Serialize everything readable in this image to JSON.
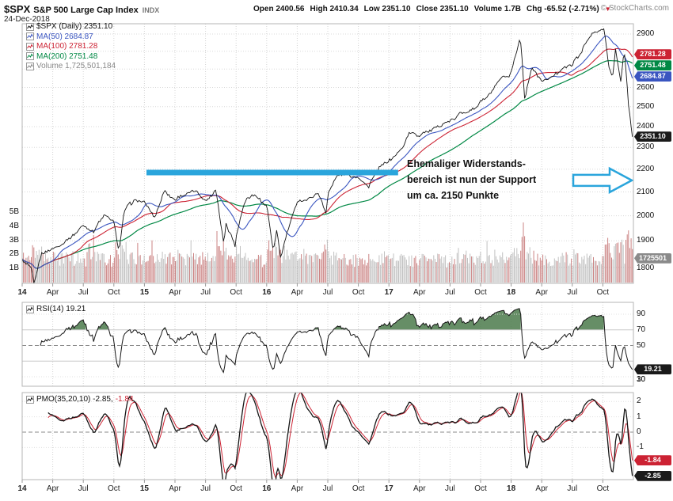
{
  "header": {
    "symbol": "$SPX",
    "name": "S&P 500 Large Cap Index",
    "exchange": "INDX",
    "date": "24-Dec-2018",
    "copyright": "© StockCharts.com",
    "quote": [
      {
        "label": "Open",
        "value": "2400.56"
      },
      {
        "label": "High",
        "value": "2410.34"
      },
      {
        "label": "Low",
        "value": "2351.10"
      },
      {
        "label": "Close",
        "value": "2351.10"
      },
      {
        "label": "Volume",
        "value": "1.7B"
      },
      {
        "label": "Chg",
        "value": "-65.52 (-2.71%)"
      }
    ],
    "chg_direction": "▼",
    "chg_color": "#cc2233"
  },
  "legend": {
    "main": [
      {
        "text": "$SPX (Daily) 2351.10",
        "color": "#111111"
      },
      {
        "text": "MA(50) 2684.87",
        "color": "#3a55c0"
      },
      {
        "text": "MA(100) 2781.28",
        "color": "#cc2233"
      },
      {
        "text": "MA(200) 2751.48",
        "color": "#008844"
      },
      {
        "text": "Volume 1,725,501,184",
        "color": "#888888"
      }
    ],
    "rsi": {
      "text": "RSI(14) 19.21",
      "color": "#111111"
    },
    "pmo": {
      "text_black": "PMO(35,20,10) -2.85,",
      "text_red": "-1.84",
      "black": "#111111",
      "red": "#cc2233"
    }
  },
  "annotation": {
    "lines": [
      "Ehemaliger Widerstands-",
      "bereich ist nun der Support",
      "um ca. 2150 Punkte"
    ],
    "color": "#111111",
    "support_color": "#2aa5dc"
  },
  "axes": {
    "price_ticks": [
      2900,
      2600,
      2500,
      2400,
      2300,
      2200,
      2100,
      2000,
      1900,
      1800
    ],
    "volume_ticks": [
      {
        "label": "5B",
        "v": 5
      },
      {
        "label": "4B",
        "v": 4
      },
      {
        "label": "3B",
        "v": 3
      },
      {
        "label": "2B",
        "v": 2
      },
      {
        "label": "1B",
        "v": 1
      }
    ],
    "x_ticks": [
      {
        "label": "14",
        "m": 0,
        "year": true
      },
      {
        "label": "Apr",
        "m": 3
      },
      {
        "label": "Jul",
        "m": 6
      },
      {
        "label": "Oct",
        "m": 9
      },
      {
        "label": "15",
        "m": 12,
        "year": true
      },
      {
        "label": "Apr",
        "m": 15
      },
      {
        "label": "Jul",
        "m": 18
      },
      {
        "label": "Oct",
        "m": 21
      },
      {
        "label": "16",
        "m": 24,
        "year": true
      },
      {
        "label": "Apr",
        "m": 27
      },
      {
        "label": "Jul",
        "m": 30
      },
      {
        "label": "Oct",
        "m": 33
      },
      {
        "label": "17",
        "m": 36,
        "year": true
      },
      {
        "label": "Apr",
        "m": 39
      },
      {
        "label": "Jul",
        "m": 42
      },
      {
        "label": "Oct",
        "m": 45
      },
      {
        "label": "18",
        "m": 48,
        "year": true
      },
      {
        "label": "Apr",
        "m": 51
      },
      {
        "label": "Jul",
        "m": 54
      },
      {
        "label": "Oct",
        "m": 57
      }
    ],
    "rsi_ticks": [
      90,
      70,
      50,
      30,
      10
    ],
    "pmo_ticks": [
      2,
      1,
      0,
      -1
    ],
    "badges": {
      "main": [
        {
          "text": "2781.28",
          "bg": "#cc2233",
          "price": 2781.28
        },
        {
          "text": "2751.48",
          "bg": "#008844",
          "price": 2751.48
        },
        {
          "text": "2684.87",
          "bg": "#3a55c0",
          "price": 2684.87
        },
        {
          "text": "2351.10",
          "bg": "#1a1a1a",
          "price": 2351.1
        },
        {
          "text": "1725501",
          "bg": "#8a8a8a",
          "volume_billions": 1.7255
        }
      ],
      "rsi": [
        {
          "text": "19.21",
          "bg": "#1a1a1a",
          "value": 19.21
        }
      ],
      "pmo": [
        {
          "text": "-1.84",
          "bg": "#cc2233",
          "value": -1.84
        },
        {
          "text": "-2.85",
          "bg": "#1a1a1a",
          "value": -2.85
        }
      ]
    }
  },
  "chart_data": {
    "type": "line",
    "title": "$SPX S&P 500 Large Cap Index (Daily) with MA(50), MA(100), MA(200), Volume, RSI(14), PMO(35,20,10)",
    "x_axis": "Months from Jan-2014 through 24-Dec-2018",
    "y_scale": "log",
    "ylim": [
      1742,
      2962
    ],
    "last_bar": {
      "open": 2400.56,
      "high": 2410.34,
      "low": 2351.1,
      "close": 2351.1,
      "volume": 1725501184,
      "change": -65.52,
      "change_pct": -2.71
    },
    "ma": {
      "ma50": 2684.87,
      "ma100": 2781.28,
      "ma200": 2751.48
    },
    "price_anchors": [
      [
        0,
        1832
      ],
      [
        1,
        1783
      ],
      [
        1.15,
        1742
      ],
      [
        2,
        1859
      ],
      [
        3,
        1872
      ],
      [
        4,
        1884
      ],
      [
        5,
        1924
      ],
      [
        6,
        1960
      ],
      [
        7,
        1931
      ],
      [
        8,
        2003
      ],
      [
        9,
        1972
      ],
      [
        9.5,
        1862
      ],
      [
        10,
        2018
      ],
      [
        11,
        2068
      ],
      [
        12,
        2059
      ],
      [
        13,
        1995
      ],
      [
        14,
        2105
      ],
      [
        15,
        2068
      ],
      [
        16,
        2086
      ],
      [
        17,
        2107
      ],
      [
        18,
        2063
      ],
      [
        19,
        2104
      ],
      [
        19.8,
        1893
      ],
      [
        20,
        1972
      ],
      [
        20.95,
        1872
      ],
      [
        21,
        1920
      ],
      [
        22,
        2079
      ],
      [
        23,
        2080
      ],
      [
        24,
        2044
      ],
      [
        24.65,
        1859
      ],
      [
        25,
        1940
      ],
      [
        25.37,
        1829
      ],
      [
        26,
        1932
      ],
      [
        27,
        2060
      ],
      [
        28,
        2065
      ],
      [
        29,
        2097
      ],
      [
        29.87,
        2001
      ],
      [
        30,
        2099
      ],
      [
        31,
        2174
      ],
      [
        32,
        2171
      ],
      [
        33,
        2168
      ],
      [
        34,
        2126
      ],
      [
        35,
        2199
      ],
      [
        36,
        2239
      ],
      [
        37,
        2279
      ],
      [
        38,
        2364
      ],
      [
        39,
        2363
      ],
      [
        40,
        2384
      ],
      [
        41,
        2412
      ],
      [
        42,
        2423
      ],
      [
        43,
        2470
      ],
      [
        44,
        2472
      ],
      [
        45,
        2519
      ],
      [
        46,
        2575
      ],
      [
        47,
        2648
      ],
      [
        48,
        2674
      ],
      [
        48.85,
        2873
      ],
      [
        49,
        2824
      ],
      [
        49.3,
        2533
      ],
      [
        50,
        2714
      ],
      [
        51,
        2641
      ],
      [
        52,
        2648
      ],
      [
        53,
        2705
      ],
      [
        54,
        2718
      ],
      [
        55,
        2816
      ],
      [
        56,
        2902
      ],
      [
        57,
        2914
      ],
      [
        57.1,
        2940
      ],
      [
        57.6,
        2710
      ],
      [
        57.95,
        2641
      ],
      [
        58.25,
        2813
      ],
      [
        58.75,
        2632
      ],
      [
        59,
        2760
      ],
      [
        59.1,
        2790
      ],
      [
        59.35,
        2633
      ],
      [
        59.5,
        2506
      ],
      [
        59.65,
        2467
      ],
      [
        59.75,
        2417
      ],
      [
        59.9,
        2351
      ]
    ],
    "support_line": {
      "price": 2185,
      "from_month": 12.2,
      "to_month": 36.9,
      "label_price": "ca. 2150"
    },
    "arrow": {
      "points_at_price": 2150
    },
    "volume_ylim_billions": [
      0,
      5
    ],
    "rsi": {
      "period": 14,
      "last": 19.21,
      "ylim": [
        0,
        100
      ],
      "overbought": 70,
      "oversold": 30,
      "midline": 50
    },
    "pmo": {
      "params": [
        35,
        20,
        10
      ],
      "pmo_last": -2.85,
      "signal_last": -1.84,
      "zero_line": 0
    }
  }
}
